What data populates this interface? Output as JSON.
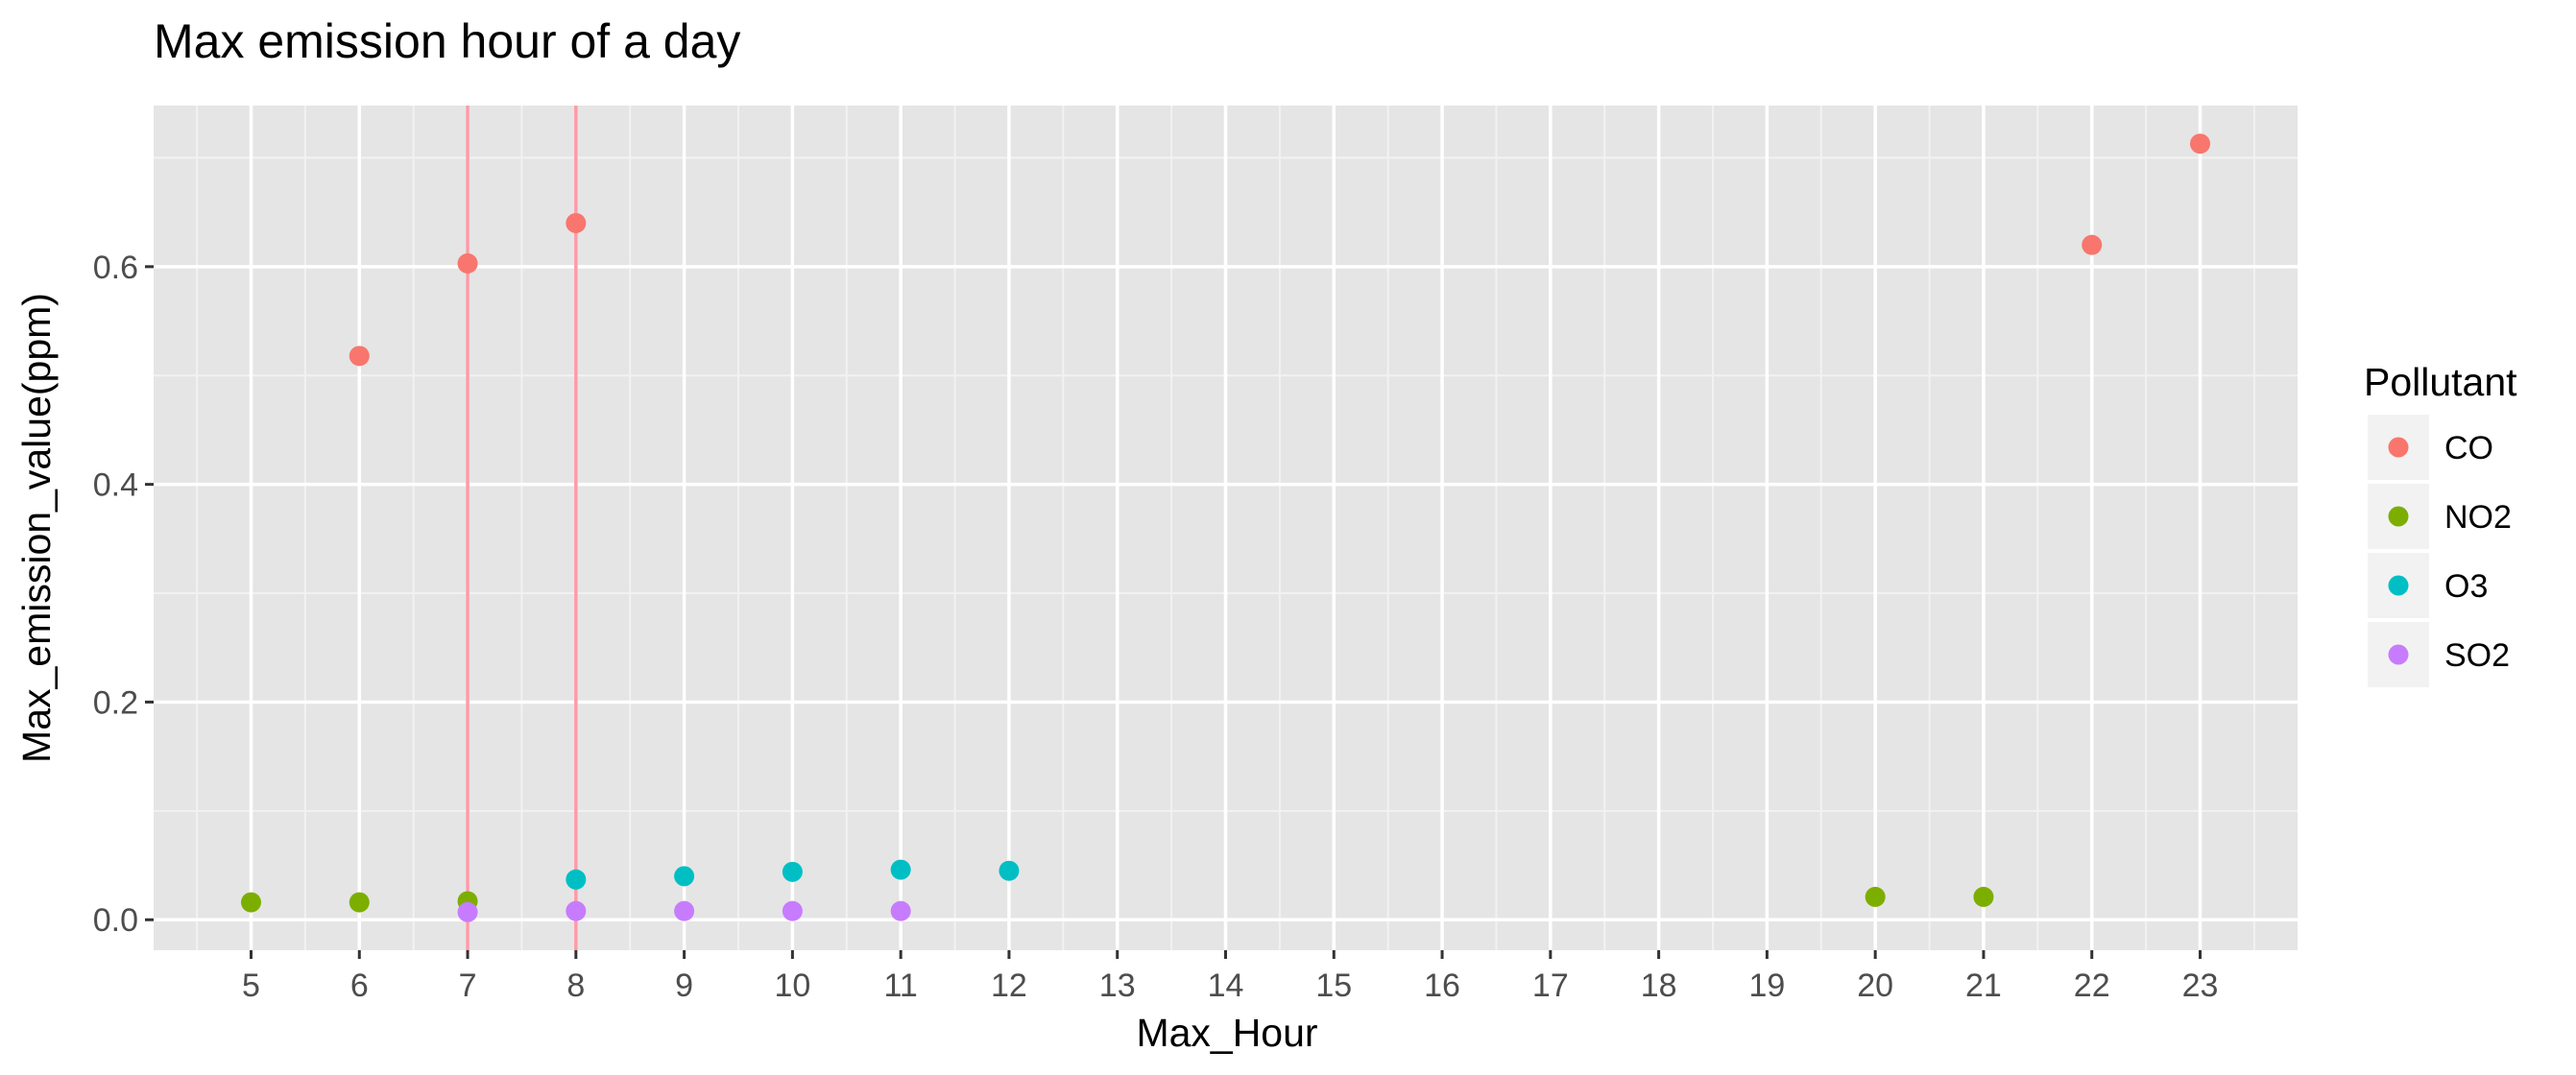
{
  "chart_data": {
    "type": "scatter",
    "title": "Max emission hour of a day",
    "xlabel": "Max_Hour",
    "ylabel": "Max_emission_value(ppm)",
    "x_ticks": [
      "5",
      "6",
      "7",
      "8",
      "9",
      "10",
      "11",
      "12",
      "13",
      "14",
      "15",
      "16",
      "17",
      "18",
      "19",
      "20",
      "21",
      "22",
      "23"
    ],
    "y_ticks": [
      "0.0",
      "0.2",
      "0.4",
      "0.6"
    ],
    "xlim": [
      4.1,
      23.9
    ],
    "ylim": [
      -0.028,
      0.748
    ],
    "grid": true,
    "legend": {
      "title": "Pollutant",
      "position": "right"
    },
    "vlines": [
      {
        "x": 7,
        "color": "#ff9aa8"
      },
      {
        "x": 8,
        "color": "#ff9aa8"
      }
    ],
    "series": [
      {
        "name": "CO",
        "color": "#f8766d",
        "points": [
          {
            "x": 6,
            "y": 0.518
          },
          {
            "x": 7,
            "y": 0.603
          },
          {
            "x": 8,
            "y": 0.64
          },
          {
            "x": 22,
            "y": 0.62
          },
          {
            "x": 23,
            "y": 0.713
          }
        ]
      },
      {
        "name": "NO2",
        "color": "#7cae00",
        "points": [
          {
            "x": 5,
            "y": 0.016
          },
          {
            "x": 6,
            "y": 0.016
          },
          {
            "x": 7,
            "y": 0.017
          },
          {
            "x": 20,
            "y": 0.021
          },
          {
            "x": 21,
            "y": 0.021
          }
        ]
      },
      {
        "name": "O3",
        "color": "#00bfc4",
        "points": [
          {
            "x": 8,
            "y": 0.037
          },
          {
            "x": 9,
            "y": 0.04
          },
          {
            "x": 10,
            "y": 0.044
          },
          {
            "x": 11,
            "y": 0.046
          },
          {
            "x": 12,
            "y": 0.045
          }
        ]
      },
      {
        "name": "SO2",
        "color": "#c77cff",
        "points": [
          {
            "x": 7,
            "y": 0.007
          },
          {
            "x": 8,
            "y": 0.008
          },
          {
            "x": 9,
            "y": 0.008
          },
          {
            "x": 10,
            "y": 0.008
          },
          {
            "x": 11,
            "y": 0.008
          }
        ]
      }
    ]
  }
}
